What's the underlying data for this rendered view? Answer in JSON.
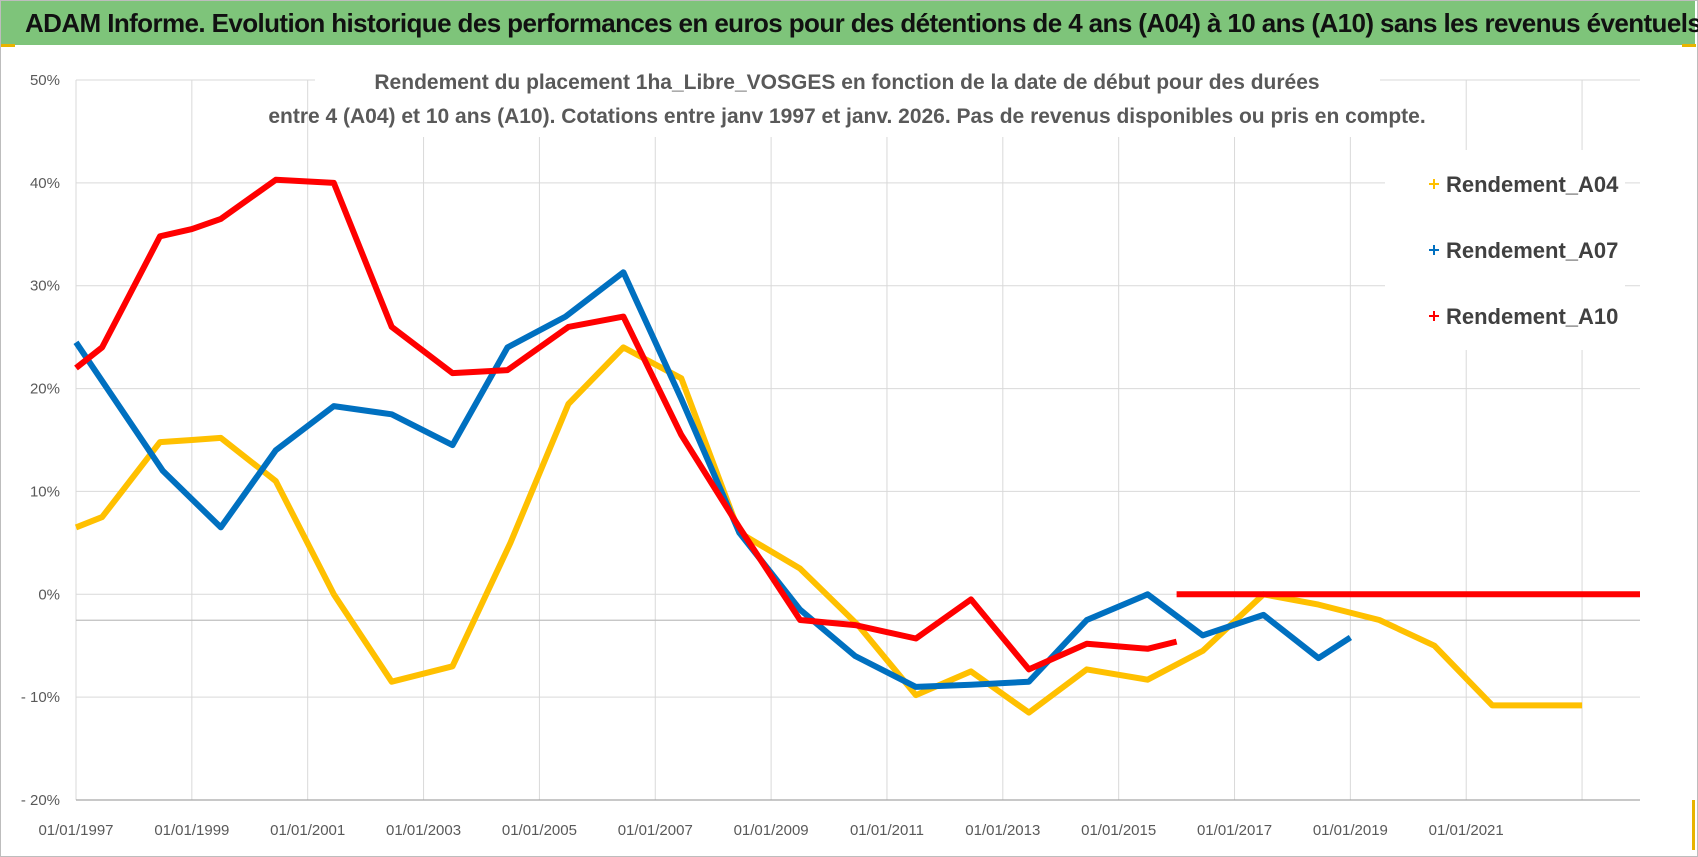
{
  "header": {
    "title": "ADAM Informe. Evolution historique des performances en euros pour des détentions de 4 ans (A04) à 10 ans (A10) sans les revenus éventuels"
  },
  "colors": {
    "banner": "#7ec47a",
    "A04": "#ffc000",
    "A07": "#0070c0",
    "A10": "#ff0000",
    "grid": "#d9d9d9",
    "text": "#595959"
  },
  "chart_data": {
    "type": "line",
    "title_lines": [
      "Rendement du placement 1ha_Libre_VOSGES en fonction de la date de début pour des durées",
      "entre 4 (A04) et 10 ans (A10).  Cotations entre janv 1997 et janv. 2026. Pas de revenus disponibles ou pris en compte."
    ],
    "xlabel": "",
    "ylabel": "",
    "x_range": [
      1997.0,
      2024.0
    ],
    "ylim": [
      -20,
      50
    ],
    "y_ticks": [
      50,
      40,
      30,
      20,
      10,
      0,
      -10,
      -20
    ],
    "y_tick_labels": [
      "50%",
      "40%",
      "30%",
      "20%",
      "10%",
      "0%",
      "- 10%",
      "- 20%"
    ],
    "x_tick_labels": [
      "01/01/1997",
      "01/01/1999",
      "01/01/2001",
      "01/01/2003",
      "01/01/2005",
      "01/01/2007",
      "01/01/2009",
      "01/01/2011",
      "01/01/2013",
      "01/01/2015",
      "01/01/2017",
      "01/01/2019",
      "01/01/2021"
    ],
    "grid": true,
    "legend_position": "top-right",
    "series": [
      {
        "name": "Rendement_A04",
        "x": [
          1997.0,
          1997.45,
          1998.45,
          1999.0,
          1999.5,
          2000.45,
          2001.45,
          2002.45,
          2003.5,
          2004.5,
          2005.5,
          2006.45,
          2007.45,
          2008.45,
          2009.5,
          2010.5,
          2011.5,
          2012.45,
          2013.45,
          2014.45,
          2015.5,
          2016.45,
          2017.5,
          2018.45,
          2019.5,
          2020.45,
          2021.45,
          2022.45,
          2023.0
        ],
        "y": [
          6.5,
          7.5,
          14.8,
          15.0,
          15.2,
          11.0,
          0.0,
          -8.5,
          -7.0,
          5.0,
          18.5,
          24.0,
          21.0,
          6.0,
          2.5,
          -3.0,
          -9.8,
          -7.5,
          -11.5,
          -7.3,
          -8.3,
          -5.5,
          0.0,
          -1.0,
          -2.5,
          -5.0,
          -10.8,
          -10.8,
          -10.8
        ]
      },
      {
        "name": "Rendement_A07",
        "x": [
          1997.0,
          1998.5,
          1999.5,
          2000.45,
          2001.45,
          2002.45,
          2003.5,
          2004.45,
          2005.45,
          2006.45,
          2007.45,
          2008.45,
          2009.5,
          2010.45,
          2011.5,
          2012.45,
          2013.45,
          2014.45,
          2015.5,
          2016.45,
          2017.5,
          2018.45,
          2019.0
        ],
        "y": [
          24.5,
          12.0,
          6.5,
          14.0,
          18.3,
          17.5,
          14.5,
          24.0,
          27.0,
          31.3,
          19.0,
          6.0,
          -1.5,
          -6.0,
          -9.0,
          -8.8,
          -8.5,
          -2.5,
          0.0,
          -4.0,
          -2.0,
          -6.2,
          -4.2
        ]
      },
      {
        "name": "Rendement_A10",
        "x": [
          1997.0,
          1997.45,
          1998.45,
          1999.0,
          1999.5,
          2000.45,
          2001.45,
          2002.45,
          2003.5,
          2004.45,
          2005.5,
          2006.45,
          2007.45,
          2008.45,
          2009.5,
          2010.45,
          2011.5,
          2012.45,
          2013.45,
          2014.45,
          2015.5,
          2016.0
        ],
        "y": [
          22.0,
          24.0,
          34.8,
          35.5,
          36.5,
          40.3,
          40.0,
          26.0,
          21.5,
          21.8,
          26.0,
          27.0,
          15.5,
          6.5,
          -2.5,
          -3.0,
          -4.3,
          -0.5,
          -7.3,
          -4.8,
          -5.3,
          -4.6
        ]
      },
      {
        "name": "",
        "x": [
          2016.0,
          2024.0
        ],
        "y": [
          0.0,
          0.0
        ]
      }
    ],
    "legend": [
      {
        "label": "Rendement_A04",
        "color": "#ffc000"
      },
      {
        "label": "Rendement_A07",
        "color": "#0070c0"
      },
      {
        "label": "Rendement_A10",
        "color": "#ff0000"
      }
    ]
  }
}
